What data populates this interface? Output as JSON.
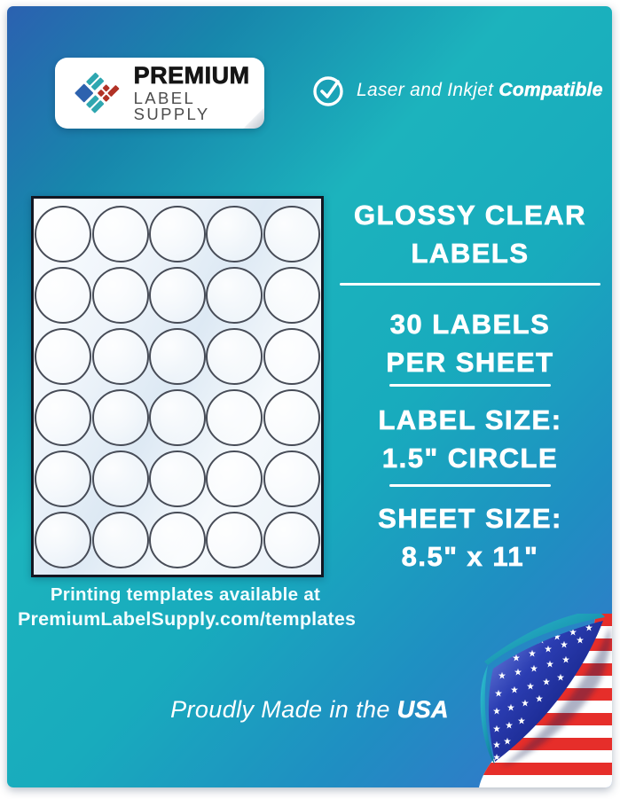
{
  "brand": {
    "name_line1": "PREMIUM",
    "name_line2": "LABEL SUPPLY",
    "logo_icon": "diamond-quilt-logo-icon",
    "logo_colors": {
      "blue": "#2d62ae",
      "teal": "#2fa7b0",
      "red": "#b13226"
    }
  },
  "compatibility": {
    "icon": "check-circle-icon",
    "prefix": "Laser and Inkjet ",
    "bold": "Compatible"
  },
  "sheet": {
    "rows": 6,
    "columns": 5,
    "label_count": 30,
    "label_shape": "circle"
  },
  "template_note": {
    "line1": "Printing templates available at",
    "line2": "PremiumLabelSupply.com/templates"
  },
  "specs": [
    {
      "lines": [
        "GLOSSY CLEAR",
        "LABELS"
      ]
    },
    {
      "lines": [
        "30 LABELS",
        "PER SHEET"
      ]
    },
    {
      "lines": [
        "LABEL SIZE:",
        "1.5\" CIRCLE"
      ]
    },
    {
      "lines": [
        "SHEET SIZE:",
        "8.5\" x 11\""
      ]
    }
  ],
  "footer": {
    "prefix": "Proudly Made in the ",
    "bold": "USA"
  },
  "flag_icon": "usa-flag-page-curl-icon",
  "colors": {
    "background_gradient": [
      "#2b61b0",
      "#1cb3bd",
      "#3a70cc"
    ],
    "text": "#ffffff",
    "stripe_red": "#e62e2a",
    "flap_blue": "#1b2a92",
    "sheet_border": "#131722"
  }
}
